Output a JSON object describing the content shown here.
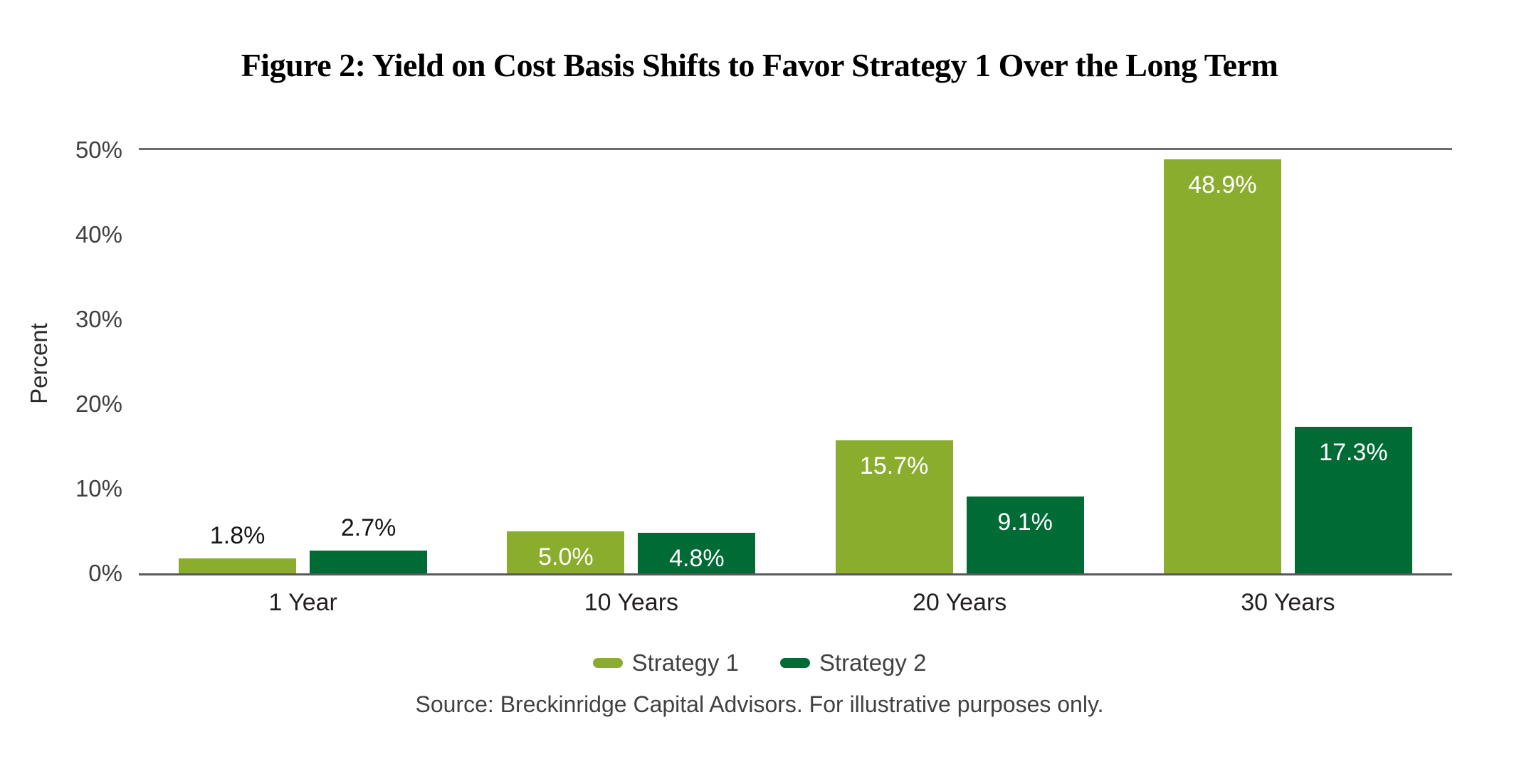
{
  "chart_data": {
    "type": "bar",
    "title": "Figure 2: Yield on Cost Basis Shifts to Favor Strategy 1 Over the Long Term",
    "categories": [
      "1 Year",
      "10 Years",
      "20 Years",
      "30 Years"
    ],
    "series": [
      {
        "name": "Strategy 1",
        "color": "#8BAD2E",
        "values": [
          1.8,
          5.0,
          15.7,
          48.9
        ],
        "labels": [
          "1.8%",
          "5.0%",
          "15.7%",
          "48.9%"
        ]
      },
      {
        "name": "Strategy 2",
        "color": "#006B35",
        "values": [
          2.7,
          4.8,
          9.1,
          17.3
        ],
        "labels": [
          "2.7%",
          "4.8%",
          "9.1%",
          "17.3%"
        ]
      }
    ],
    "xlabel": "",
    "ylabel": "Percent",
    "ylim": [
      0,
      50
    ],
    "yticks": [
      {
        "value": 0,
        "label": "0%"
      },
      {
        "value": 10,
        "label": "10%"
      },
      {
        "value": 20,
        "label": "20%"
      },
      {
        "value": 30,
        "label": "30%"
      },
      {
        "value": 40,
        "label": "40%"
      },
      {
        "value": 50,
        "label": "50%"
      }
    ],
    "grid": "single horizontal gridline at 50% plus x-axis baseline",
    "legend_position": "bottom-center",
    "value_label_colors": {
      "inside_bars": "#FFFFFF",
      "above_bars": "#161616"
    },
    "axis_color": "#58595B",
    "source": "Source: Breckinridge Capital Advisors. For illustrative purposes only."
  }
}
